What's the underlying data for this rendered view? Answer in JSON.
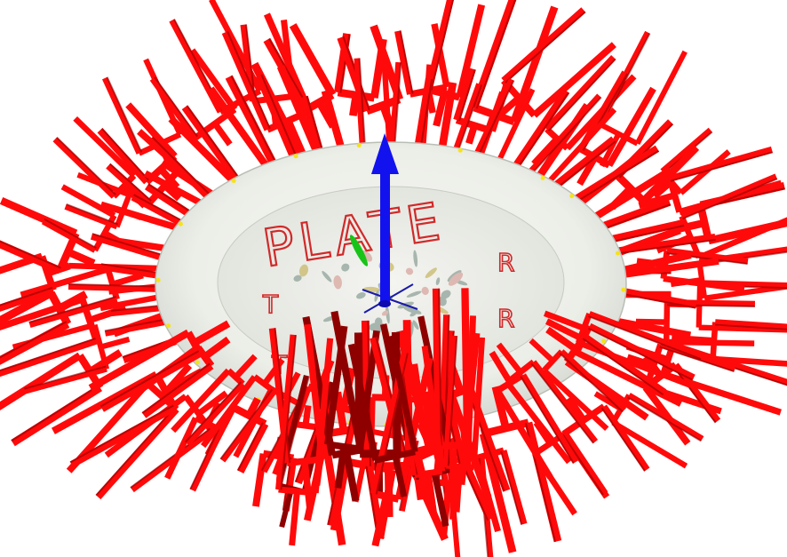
{
  "scene": {
    "background": "#ffffff",
    "plate": {
      "label": "PLATE",
      "rim_color": "#e9ece6",
      "inner_color": "#f1f2ee",
      "pattern_color": "#8fa39a",
      "text_color": "#d02a2a",
      "side_labels": [
        "R",
        "R",
        "T",
        "T"
      ]
    },
    "gripper_frames": {
      "color": "#ff0a0a",
      "shadow_color": "#8e0000",
      "count_outer": 58,
      "count_front": 16
    },
    "axes": {
      "z_color": "#1212ee",
      "y_color": "#19c419",
      "x_color": "#1a1aa8",
      "icon": "coordinate-axes-icon"
    },
    "contact_point_color": "#f6e21a"
  }
}
